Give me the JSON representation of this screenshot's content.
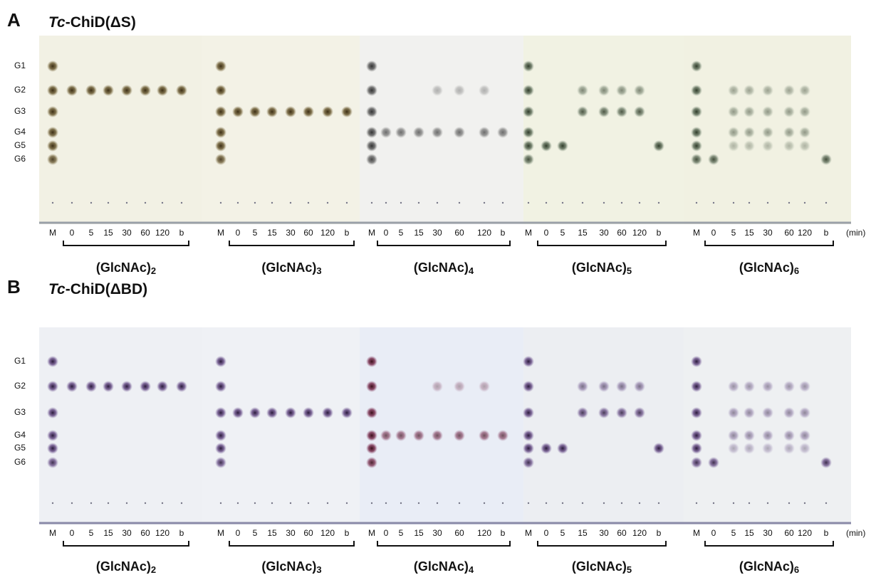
{
  "panels": [
    {
      "label": "A",
      "title": {
        "italic": "Tc",
        "text": "-ChiD(ΔS)"
      },
      "rows": [
        "G1",
        "G2",
        "G3",
        "G4",
        "G5",
        "G6"
      ],
      "plates": [
        {
          "lanes": [
            "M",
            "0",
            "5",
            "15",
            "30",
            "60",
            "120",
            "b"
          ],
          "substrate": {
            "text": "(GlcNAc)",
            "subscript": "2"
          }
        },
        {
          "lanes": [
            "M",
            "0",
            "5",
            "15",
            "30",
            "60",
            "120",
            "b"
          ],
          "substrate": {
            "text": "(GlcNAc)",
            "subscript": "3"
          }
        },
        {
          "lanes": [
            "M",
            "0",
            "5",
            "15",
            "30",
            "60",
            "120",
            "b"
          ],
          "substrate": {
            "text": "(GlcNAc)",
            "subscript": "4"
          }
        },
        {
          "lanes": [
            "M",
            "0",
            "5",
            "15",
            "30",
            "60",
            "120",
            "b"
          ],
          "substrate": {
            "text": "(GlcNAc)",
            "subscript": "5"
          }
        },
        {
          "lanes": [
            "M",
            "0",
            "5",
            "15",
            "30",
            "60",
            "120",
            "b"
          ],
          "substrate": {
            "text": "(GlcNAc)",
            "subscript": "6"
          }
        }
      ],
      "unit": "(min)"
    },
    {
      "label": "B",
      "title": {
        "italic": "Tc",
        "text": "-ChiD(ΔBD)"
      },
      "rows": [
        "G1",
        "G2",
        "G3",
        "G4",
        "G5",
        "G6"
      ],
      "plates": [
        {
          "lanes": [
            "M",
            "0",
            "5",
            "15",
            "30",
            "60",
            "120",
            "b"
          ],
          "substrate": {
            "text": "(GlcNAc)",
            "subscript": "2"
          }
        },
        {
          "lanes": [
            "M",
            "0",
            "5",
            "15",
            "30",
            "60",
            "120",
            "b"
          ],
          "substrate": {
            "text": "(GlcNAc)",
            "subscript": "3"
          }
        },
        {
          "lanes": [
            "M",
            "0",
            "5",
            "15",
            "30",
            "60",
            "120",
            "b"
          ],
          "substrate": {
            "text": "(GlcNAc)",
            "subscript": "4"
          }
        },
        {
          "lanes": [
            "M",
            "0",
            "5",
            "15",
            "30",
            "60",
            "120",
            "b"
          ],
          "substrate": {
            "text": "(GlcNAc)",
            "subscript": "5"
          }
        },
        {
          "lanes": [
            "M",
            "0",
            "5",
            "15",
            "30",
            "60",
            "120",
            "b"
          ],
          "substrate": {
            "text": "(GlcNAc)",
            "subscript": "6"
          }
        }
      ],
      "unit": "(min)"
    }
  ]
}
